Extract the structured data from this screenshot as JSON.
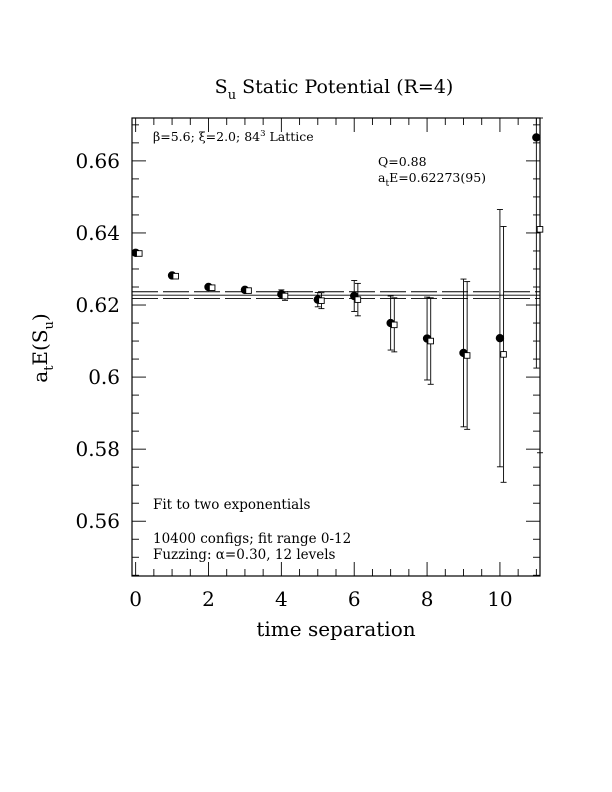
{
  "chart_data": {
    "type": "scatter",
    "title": "S",
    "title_sub": "u",
    "title_rest": " Static Potential (R=4)",
    "xlabel": "time separation",
    "ylabel_main": "a",
    "ylabel_sub1": "t",
    "ylabel_mid": "E(S",
    "ylabel_sub2": "u",
    "ylabel_end": ")",
    "xlim": [
      -0.1,
      11.1
    ],
    "ylim": [
      0.5448,
      0.6719
    ],
    "x_ticks": [
      0,
      2,
      4,
      6,
      8,
      10
    ],
    "x_tick_labels": [
      "0",
      "2",
      "4",
      "6",
      "8",
      "10"
    ],
    "y_ticks": [
      0.56,
      0.58,
      0.6,
      0.62,
      0.64,
      0.66
    ],
    "y_tick_labels": [
      "0.56",
      "0.58",
      "0.6",
      "0.62",
      "0.64",
      "0.66"
    ],
    "x_minor_step": 0.5,
    "y_minor_step": 0.005,
    "grid": false,
    "annotations": {
      "lattice_beta": "β=5.6; ",
      "lattice_xi": "ξ=2.0; 84",
      "lattice_sup": "3",
      "lattice_rest": " Lattice",
      "q_value": "Q=0.88",
      "fit_energy_a": "a",
      "fit_energy_sub": "t",
      "fit_energy_rest": "E=0.62273(95)",
      "fit_type": "Fit to two exponentials",
      "configs": "10400 configs; fit range 0-12",
      "fuzzing": "Fuzzing: α=0.30, 12 levels"
    },
    "fit": {
      "value": 0.62273,
      "error": 0.00095
    },
    "series": [
      {
        "marker": "filled-circle",
        "x_offset": 0,
        "points": [
          {
            "x": 0,
            "y": 0.6345,
            "err": 0.0002
          },
          {
            "x": 1,
            "y": 0.6282,
            "err": 0.0003
          },
          {
            "x": 2,
            "y": 0.625,
            "err": 0.0004
          },
          {
            "x": 3,
            "y": 0.6242,
            "err": 0.0006
          },
          {
            "x": 4,
            "y": 0.623,
            "err": 0.0012
          },
          {
            "x": 5,
            "y": 0.6215,
            "err": 0.002
          },
          {
            "x": 6,
            "y": 0.6225,
            "err": 0.0043
          },
          {
            "x": 7,
            "y": 0.615,
            "err": 0.0075
          },
          {
            "x": 8,
            "y": 0.6107,
            "err": 0.0115
          },
          {
            "x": 9,
            "y": 0.6067,
            "err": 0.0205
          },
          {
            "x": 10,
            "y": 0.6108,
            "err": 0.0357
          },
          {
            "x": 11,
            "y": 0.6665,
            "err": 0.064
          }
        ]
      },
      {
        "marker": "open-square",
        "x_offset": 0.1,
        "points": [
          {
            "x": 0,
            "y": 0.6343,
            "err": 0.0002
          },
          {
            "x": 1,
            "y": 0.628,
            "err": 0.0003
          },
          {
            "x": 2,
            "y": 0.6248,
            "err": 0.0004
          },
          {
            "x": 3,
            "y": 0.624,
            "err": 0.0006
          },
          {
            "x": 4,
            "y": 0.6225,
            "err": 0.0012
          },
          {
            "x": 5,
            "y": 0.6212,
            "err": 0.0022
          },
          {
            "x": 6,
            "y": 0.6215,
            "err": 0.0045
          },
          {
            "x": 7,
            "y": 0.6145,
            "err": 0.0075
          },
          {
            "x": 8,
            "y": 0.61,
            "err": 0.012
          },
          {
            "x": 9,
            "y": 0.606,
            "err": 0.0205
          },
          {
            "x": 10,
            "y": 0.6063,
            "err": 0.0355
          },
          {
            "x": 11,
            "y": 0.641,
            "err": 0.062
          }
        ]
      }
    ]
  }
}
